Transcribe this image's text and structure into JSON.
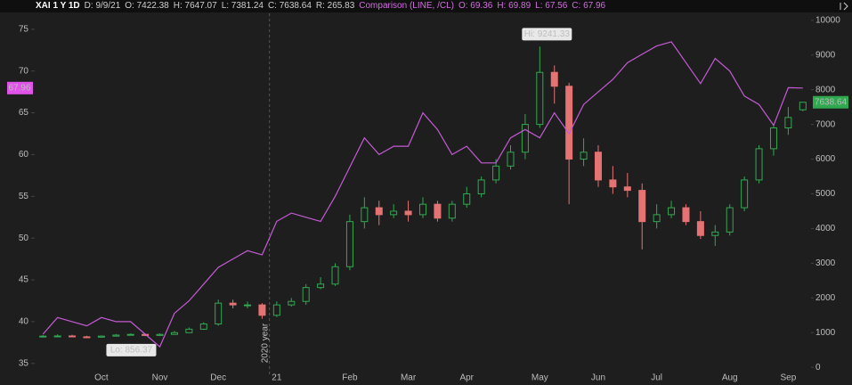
{
  "chart_data": {
    "type": "candlestick",
    "header": {
      "symbol": "XAI 1 Y 1D",
      "fields": [
        "D: 9/9/21",
        "O: 7422.38",
        "H: 7647.07",
        "L: 7381.24",
        "C: 7638.64",
        "R: 265.83"
      ],
      "comparison": "Comparison (LINE, /CL)",
      "comparison_fields": [
        "O: 69.36",
        "H: 69.89",
        "L: 67.56",
        "C: 67.96"
      ]
    },
    "categories": [
      null,
      null,
      null,
      null,
      "Oct",
      null,
      null,
      null,
      "Nov",
      null,
      null,
      null,
      "Dec",
      null,
      null,
      null,
      "21",
      null,
      null,
      null,
      null,
      "Feb",
      null,
      null,
      null,
      "Mar",
      null,
      null,
      null,
      "Apr",
      null,
      null,
      null,
      null,
      "May",
      null,
      null,
      null,
      "Jun",
      null,
      null,
      null,
      "Jul",
      null,
      null,
      null,
      null,
      "Aug",
      null,
      null,
      null,
      "Sep",
      null
    ],
    "series": [
      {
        "name": "XAI",
        "type": "candlestick",
        "axis": "y2",
        "up_color": "#33a852",
        "down_color": "#e57373",
        "open": [
          880,
          900,
          905,
          880,
          870,
          900,
          930,
          950,
          920,
          950,
          1000,
          1100,
          1250,
          1850,
          1800,
          1800,
          1500,
          1800,
          1900,
          2300,
          2400,
          2900,
          4200,
          4600,
          4400,
          4500,
          4400,
          4700,
          4300,
          4700,
          5000,
          5400,
          5800,
          6200,
          7000,
          8500,
          8100,
          6000,
          6200,
          5400,
          5200,
          5100,
          4200,
          4400,
          4600,
          4200,
          3800,
          3900,
          4600,
          5400,
          6300,
          6900,
          7422.38
        ],
        "high": [
          930,
          950,
          940,
          910,
          920,
          960,
          980,
          970,
          980,
          1050,
          1150,
          1300,
          1950,
          1950,
          1900,
          1850,
          1900,
          2000,
          2400,
          2600,
          3000,
          4400,
          4900,
          4800,
          4700,
          4800,
          4900,
          4800,
          4800,
          5200,
          5500,
          6000,
          6400,
          7300,
          9241.33,
          8700,
          8200,
          6600,
          6400,
          5800,
          5600,
          5300,
          4700,
          4800,
          4700,
          4500,
          4100,
          4700,
          5500,
          6400,
          7000,
          7500,
          7647.07
        ],
        "low": [
          860,
          880,
          870,
          856.37,
          860,
          890,
          920,
          900,
          910,
          940,
          990,
          1080,
          1200,
          1700,
          1700,
          1400,
          1450,
          1750,
          1800,
          2250,
          2350,
          2800,
          4000,
          4100,
          4300,
          4200,
          4300,
          4200,
          4200,
          4600,
          4900,
          5300,
          5700,
          6000,
          6900,
          7600,
          4700,
          5800,
          5200,
          5000,
          4900,
          3400,
          4000,
          4300,
          4100,
          3700,
          3500,
          3800,
          4500,
          5300,
          6100,
          6700,
          7381.24
        ],
        "close": [
          900,
          905,
          880,
          870,
          900,
          930,
          950,
          920,
          950,
          1000,
          1100,
          1250,
          1850,
          1800,
          1800,
          1500,
          1800,
          1900,
          2300,
          2400,
          2900,
          4200,
          4600,
          4400,
          4500,
          4400,
          4700,
          4300,
          4700,
          5000,
          5400,
          5800,
          6200,
          7000,
          8500,
          8100,
          6000,
          6200,
          5400,
          5200,
          5100,
          4200,
          4400,
          4600,
          4200,
          3800,
          3900,
          4600,
          5400,
          6300,
          6900,
          7200,
          7638.64
        ]
      },
      {
        "type": "line",
        "axis": "y",
        "color": "#c45bd4",
        "values": [
          38.5,
          40.5,
          40,
          39.5,
          40.5,
          40,
          40,
          38.5,
          37,
          41,
          42.5,
          44.5,
          46.5,
          47.5,
          48.5,
          48,
          52,
          53,
          52.5,
          52,
          55,
          58.5,
          62,
          60,
          61,
          61,
          65,
          63,
          60,
          61,
          59,
          59,
          62,
          63,
          62,
          65,
          62.5,
          66,
          67.5,
          69,
          71,
          72,
          73,
          73.5,
          71,
          68.5,
          71.5,
          70,
          67,
          66,
          63.5,
          68,
          67.96
        ]
      }
    ],
    "ylim": [
      33.7,
      76.9
    ],
    "yticks": [
      35,
      40,
      45,
      50,
      55,
      60,
      65,
      70,
      75
    ],
    "y2lim": [
      -200,
      10200
    ],
    "y2ticks": [
      0,
      1000,
      2000,
      3000,
      4000,
      5000,
      6000,
      7000,
      8000,
      9000,
      10000
    ],
    "grid": false,
    "hi_label": "Hi: 9241.33",
    "lo_label": "Lo: 856.37",
    "year_marker": {
      "label": "2020 year",
      "index": 16
    },
    "last_labels": {
      "left": "67.96",
      "right": "7638.64"
    }
  }
}
